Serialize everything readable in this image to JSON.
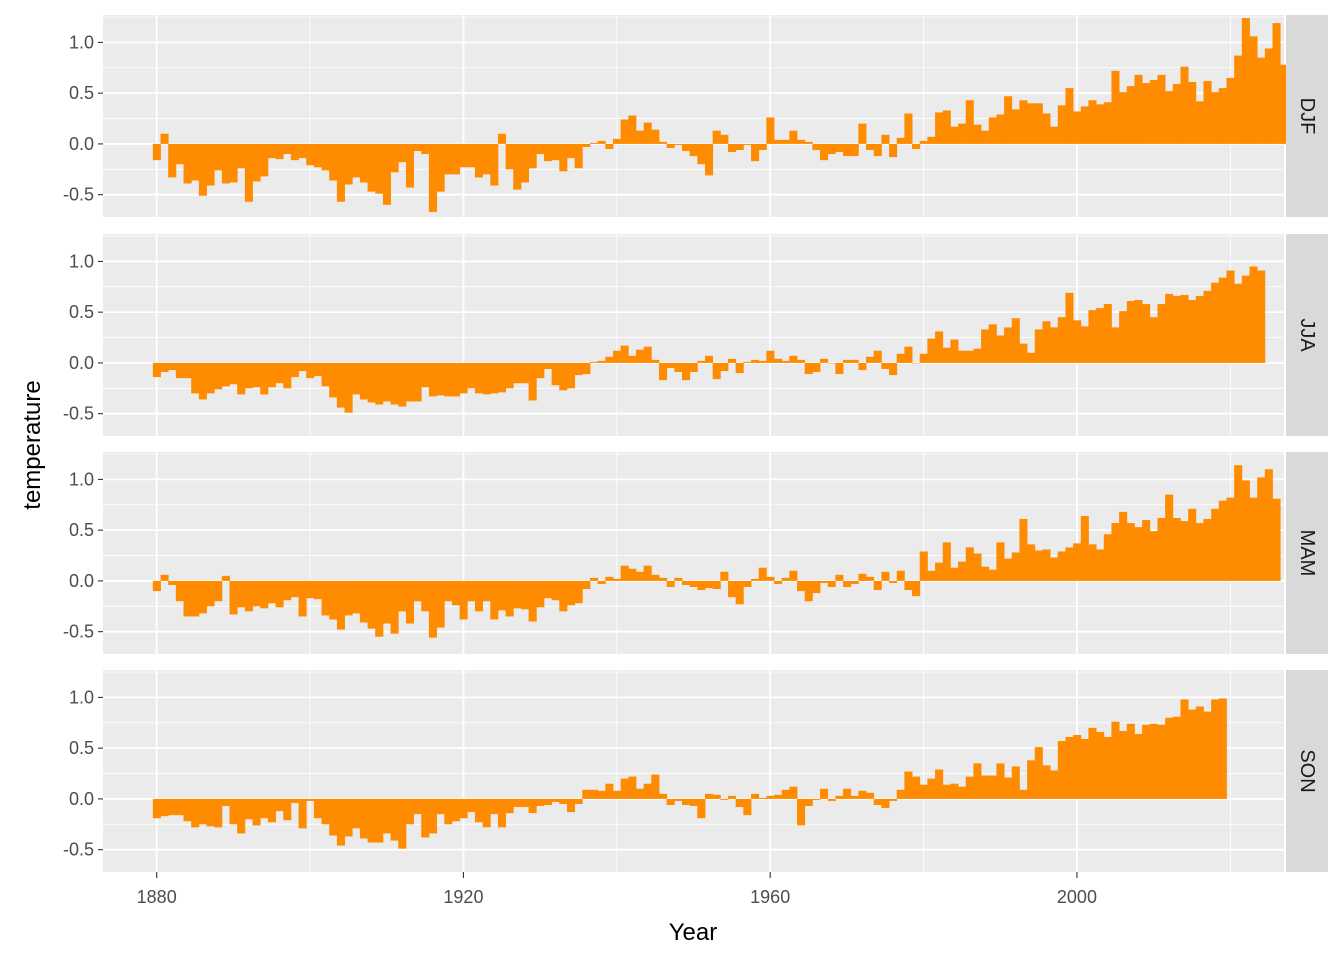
{
  "colors": {
    "bar": "#FF8C00",
    "panel_background": "#EBEBEB",
    "grid_major": "#FFFFFF",
    "strip_background": "#D9D9D9",
    "tick_text": "#4D4D4D"
  },
  "chart_data": {
    "type": "bar",
    "layout": "facet_grid rows",
    "xlabel": "Year",
    "ylabel": "temperature",
    "xlim": [
      1873,
      2027
    ],
    "ylim": [
      -0.72,
      1.27
    ],
    "x_ticks": [
      1880,
      1920,
      1960,
      2000
    ],
    "y_ticks": [
      -0.5,
      0.0,
      0.5,
      1.0
    ],
    "x_tick_labels": [
      "1880",
      "1920",
      "1960",
      "2000"
    ],
    "y_tick_labels": [
      "-0.5",
      "0.0",
      "0.5",
      "1.0"
    ],
    "grid": true,
    "facets": [
      {
        "label": "DJF",
        "start_year": 1880,
        "values": [
          -0.16,
          0.1,
          -0.33,
          -0.2,
          -0.39,
          -0.36,
          -0.51,
          -0.41,
          -0.26,
          -0.39,
          -0.38,
          -0.24,
          -0.57,
          -0.37,
          -0.32,
          -0.14,
          -0.15,
          -0.1,
          -0.16,
          -0.14,
          -0.21,
          -0.23,
          -0.26,
          -0.36,
          -0.57,
          -0.4,
          -0.33,
          -0.38,
          -0.47,
          -0.49,
          -0.6,
          -0.28,
          -0.18,
          -0.43,
          -0.07,
          -0.1,
          -0.67,
          -0.47,
          -0.3,
          -0.3,
          -0.23,
          -0.23,
          -0.33,
          -0.3,
          -0.41,
          0.1,
          -0.25,
          -0.45,
          -0.38,
          -0.24,
          -0.1,
          -0.17,
          -0.16,
          -0.27,
          -0.14,
          -0.24,
          -0.03,
          0.01,
          0.03,
          -0.05,
          0.05,
          0.24,
          0.28,
          0.13,
          0.21,
          0.14,
          0.02,
          -0.04,
          -0.01,
          -0.07,
          -0.12,
          -0.2,
          -0.31,
          0.13,
          0.09,
          -0.08,
          -0.06,
          -0.01,
          -0.17,
          -0.06,
          0.26,
          0.04,
          0.04,
          0.13,
          0.04,
          0.02,
          -0.06,
          -0.16,
          -0.1,
          -0.08,
          -0.12,
          -0.12,
          0.2,
          -0.06,
          -0.12,
          0.09,
          -0.13,
          0.06,
          0.3,
          -0.05,
          0.03,
          0.07,
          0.31,
          0.33,
          0.17,
          0.2,
          0.43,
          0.19,
          0.13,
          0.26,
          0.29,
          0.47,
          0.34,
          0.43,
          0.4,
          0.4,
          0.3,
          0.17,
          0.38,
          0.55,
          0.32,
          0.37,
          0.43,
          0.39,
          0.41,
          0.72,
          0.51,
          0.57,
          0.68,
          0.6,
          0.63,
          0.68,
          0.52,
          0.59,
          0.76,
          0.61,
          0.42,
          0.62,
          0.51,
          0.55,
          0.65,
          0.87,
          1.24,
          1.06,
          0.85,
          0.94,
          1.19,
          0.78
        ]
      },
      {
        "label": "JJA",
        "start_year": 1880,
        "values": [
          -0.14,
          -0.09,
          -0.07,
          -0.15,
          -0.15,
          -0.3,
          -0.36,
          -0.3,
          -0.26,
          -0.23,
          -0.21,
          -0.31,
          -0.25,
          -0.24,
          -0.31,
          -0.24,
          -0.2,
          -0.25,
          -0.14,
          -0.08,
          -0.15,
          -0.13,
          -0.23,
          -0.34,
          -0.44,
          -0.49,
          -0.31,
          -0.36,
          -0.39,
          -0.41,
          -0.38,
          -0.41,
          -0.43,
          -0.38,
          -0.38,
          -0.24,
          -0.33,
          -0.32,
          -0.33,
          -0.33,
          -0.3,
          -0.25,
          -0.3,
          -0.31,
          -0.3,
          -0.29,
          -0.25,
          -0.2,
          -0.2,
          -0.37,
          -0.15,
          -0.06,
          -0.22,
          -0.27,
          -0.25,
          -0.12,
          -0.11,
          0.01,
          0.02,
          0.06,
          0.12,
          0.17,
          0.07,
          0.13,
          0.16,
          0.03,
          -0.17,
          -0.05,
          -0.09,
          -0.17,
          -0.09,
          0.02,
          0.07,
          -0.16,
          -0.08,
          0.04,
          -0.1,
          0.01,
          0.03,
          0.02,
          0.12,
          0.04,
          0.02,
          0.07,
          0.03,
          -0.11,
          -0.09,
          0.04,
          0.0,
          -0.11,
          0.03,
          0.03,
          -0.07,
          0.06,
          0.12,
          -0.06,
          -0.12,
          0.09,
          0.16,
          0.0,
          0.09,
          0.24,
          0.31,
          0.15,
          0.23,
          0.12,
          0.12,
          0.14,
          0.33,
          0.38,
          0.27,
          0.35,
          0.44,
          0.19,
          0.1,
          0.33,
          0.41,
          0.35,
          0.45,
          0.69,
          0.42,
          0.36,
          0.52,
          0.54,
          0.58,
          0.35,
          0.51,
          0.61,
          0.62,
          0.58,
          0.45,
          0.58,
          0.68,
          0.66,
          0.67,
          0.62,
          0.66,
          0.71,
          0.79,
          0.84,
          0.91,
          0.78,
          0.86,
          0.95,
          0.91
        ]
      },
      {
        "label": "MAM",
        "start_year": 1880,
        "values": [
          -0.1,
          0.06,
          -0.04,
          -0.2,
          -0.35,
          -0.35,
          -0.32,
          -0.25,
          -0.2,
          0.05,
          -0.33,
          -0.26,
          -0.3,
          -0.25,
          -0.27,
          -0.22,
          -0.26,
          -0.19,
          -0.16,
          -0.35,
          -0.17,
          -0.18,
          -0.34,
          -0.38,
          -0.48,
          -0.34,
          -0.32,
          -0.41,
          -0.47,
          -0.55,
          -0.42,
          -0.52,
          -0.3,
          -0.42,
          -0.2,
          -0.3,
          -0.56,
          -0.46,
          -0.2,
          -0.24,
          -0.38,
          -0.2,
          -0.3,
          -0.2,
          -0.38,
          -0.29,
          -0.35,
          -0.27,
          -0.28,
          -0.4,
          -0.26,
          -0.17,
          -0.19,
          -0.3,
          -0.24,
          -0.22,
          -0.08,
          0.03,
          -0.03,
          0.04,
          0.02,
          0.15,
          0.12,
          0.09,
          0.15,
          0.06,
          0.03,
          -0.06,
          0.03,
          -0.04,
          -0.06,
          -0.09,
          -0.07,
          -0.08,
          0.09,
          -0.16,
          -0.23,
          -0.06,
          0.02,
          0.13,
          0.04,
          -0.03,
          0.03,
          0.1,
          -0.1,
          -0.2,
          -0.12,
          -0.02,
          -0.06,
          0.06,
          -0.06,
          -0.03,
          0.07,
          0.04,
          -0.09,
          0.09,
          -0.02,
          0.1,
          -0.09,
          -0.15,
          0.29,
          0.1,
          0.18,
          0.38,
          0.13,
          0.19,
          0.33,
          0.27,
          0.14,
          0.11,
          0.38,
          0.22,
          0.28,
          0.61,
          0.36,
          0.3,
          0.31,
          0.23,
          0.29,
          0.33,
          0.37,
          0.64,
          0.36,
          0.31,
          0.46,
          0.57,
          0.68,
          0.57,
          0.53,
          0.6,
          0.49,
          0.62,
          0.85,
          0.62,
          0.59,
          0.71,
          0.57,
          0.61,
          0.71,
          0.79,
          0.82,
          1.14,
          0.99,
          0.82,
          1.02,
          1.1,
          0.81
        ]
      },
      {
        "label": "SON",
        "start_year": 1880,
        "values": [
          -0.19,
          -0.17,
          -0.16,
          -0.16,
          -0.22,
          -0.28,
          -0.25,
          -0.27,
          -0.28,
          -0.07,
          -0.25,
          -0.34,
          -0.2,
          -0.26,
          -0.19,
          -0.23,
          -0.12,
          -0.21,
          -0.04,
          -0.29,
          -0.02,
          -0.19,
          -0.25,
          -0.36,
          -0.46,
          -0.37,
          -0.29,
          -0.39,
          -0.43,
          -0.43,
          -0.34,
          -0.41,
          -0.49,
          -0.25,
          -0.15,
          -0.38,
          -0.34,
          -0.15,
          -0.25,
          -0.22,
          -0.19,
          -0.13,
          -0.23,
          -0.28,
          -0.15,
          -0.28,
          -0.14,
          -0.08,
          -0.08,
          -0.14,
          -0.07,
          -0.06,
          -0.03,
          -0.05,
          -0.13,
          -0.05,
          0.09,
          0.09,
          0.08,
          0.15,
          0.08,
          0.2,
          0.22,
          0.1,
          0.15,
          0.24,
          0.05,
          -0.06,
          -0.02,
          -0.06,
          -0.07,
          -0.19,
          0.05,
          0.04,
          -0.01,
          0.03,
          -0.08,
          -0.16,
          0.05,
          0.01,
          0.03,
          0.04,
          0.09,
          0.12,
          -0.26,
          -0.07,
          -0.01,
          0.1,
          -0.02,
          0.03,
          0.1,
          0.03,
          0.08,
          0.06,
          -0.06,
          -0.09,
          -0.02,
          0.09,
          0.27,
          0.22,
          0.14,
          0.2,
          0.29,
          0.14,
          0.15,
          0.12,
          0.22,
          0.35,
          0.23,
          0.23,
          0.35,
          0.21,
          0.32,
          0.09,
          0.38,
          0.51,
          0.33,
          0.28,
          0.57,
          0.61,
          0.63,
          0.59,
          0.7,
          0.66,
          0.61,
          0.76,
          0.67,
          0.74,
          0.64,
          0.73,
          0.74,
          0.73,
          0.8,
          0.81,
          0.98,
          0.88,
          0.91,
          0.86,
          0.98,
          0.99
        ]
      }
    ]
  }
}
